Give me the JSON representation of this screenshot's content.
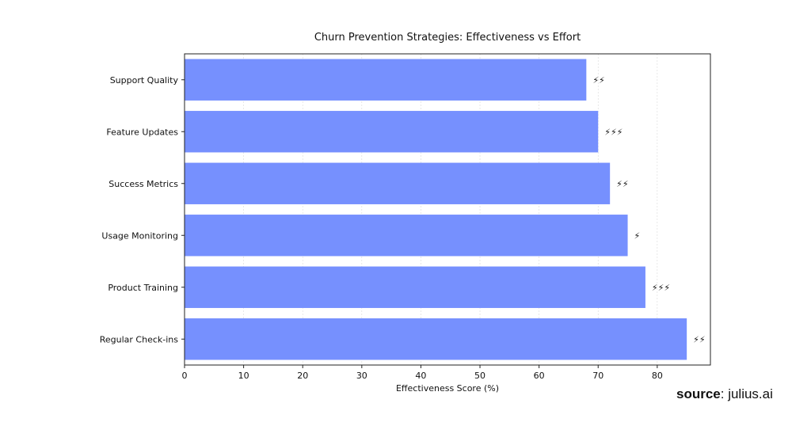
{
  "chart_data": {
    "type": "bar",
    "orientation": "horizontal",
    "title": "Churn Prevention Strategies: Effectiveness vs Effort",
    "xlabel": "Effectiveness Score (%)",
    "ylabel": "",
    "xlim": [
      0,
      89
    ],
    "xticks": [
      0,
      10,
      20,
      30,
      40,
      50,
      60,
      70,
      80
    ],
    "grid": "vertical, light",
    "bar_color": "#7690fe",
    "categories": [
      "Support Quality",
      "Feature Updates",
      "Success Metrics",
      "Usage Monitoring",
      "Product Training",
      "Regular Check-ins"
    ],
    "values": [
      68,
      70,
      72,
      75,
      78,
      85
    ],
    "effort_labels": [
      "⚡⚡",
      "⚡⚡⚡",
      "⚡⚡",
      "⚡",
      "⚡⚡⚡",
      "⚡⚡"
    ]
  },
  "footer": {
    "source_label": "source",
    "source_text": ": julius.ai"
  }
}
